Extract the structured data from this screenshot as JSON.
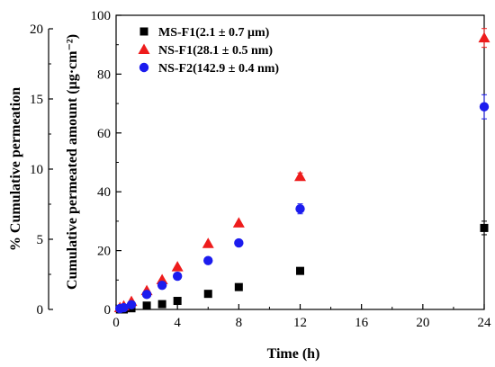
{
  "chart_data": {
    "type": "scatter",
    "title": "",
    "xlabel": "Time (h)",
    "ylabel_right": "Cumulative permeated amount (μg·cm⁻²)",
    "ylabel_left": "% Cumulative permeation",
    "x_ticks": [
      "0",
      "4",
      "8",
      "12",
      "16",
      "20",
      "24"
    ],
    "xlim": [
      0,
      24
    ],
    "y_ticks_right": [
      "0",
      "20",
      "40",
      "60",
      "80",
      "100"
    ],
    "ylim_right": [
      0,
      100
    ],
    "y_ticks_left": [
      "0",
      "5",
      "10",
      "15",
      "20"
    ],
    "ylim_left": [
      0,
      20
    ],
    "grid": false,
    "legend_position": "top-left",
    "series": [
      {
        "name": "MS-F1(2.1 ± 0.7 μm)",
        "marker": "square",
        "color": "#000000",
        "x": [
          0.25,
          0.5,
          1,
          2,
          3,
          4,
          6,
          8,
          12,
          24
        ],
        "y": [
          0,
          0,
          0.4,
          1.3,
          1.8,
          2.9,
          5.3,
          7.6,
          13.1,
          27.7
        ],
        "err": [
          0,
          0,
          0,
          0,
          0,
          0,
          0,
          0,
          0,
          2.3
        ]
      },
      {
        "name": "NS-F1(28.1 ± 0.5 nm)",
        "marker": "triangle",
        "color": "#ee1c1c",
        "x": [
          0.25,
          0.5,
          1,
          2,
          3,
          4,
          6,
          8,
          12,
          24
        ],
        "y": [
          0.6,
          1.2,
          2.7,
          6.4,
          10.1,
          14.5,
          22.4,
          29.4,
          45.2,
          92.3
        ],
        "err": [
          0,
          0,
          0,
          0,
          0,
          0,
          0,
          0,
          1.2,
          3.2
        ]
      },
      {
        "name": "NS-F2(142.9 ± 0.4 nm)",
        "marker": "circle",
        "color": "#1c1cee",
        "x": [
          0.25,
          0.5,
          1,
          2,
          3,
          4,
          6,
          8,
          12,
          24
        ],
        "y": [
          0.3,
          0.6,
          1.6,
          5.1,
          8.2,
          11.3,
          16.6,
          22.6,
          34.2,
          68.9
        ],
        "err": [
          0,
          0,
          0,
          0,
          0,
          0,
          0,
          0,
          1.7,
          4.1
        ]
      }
    ]
  }
}
